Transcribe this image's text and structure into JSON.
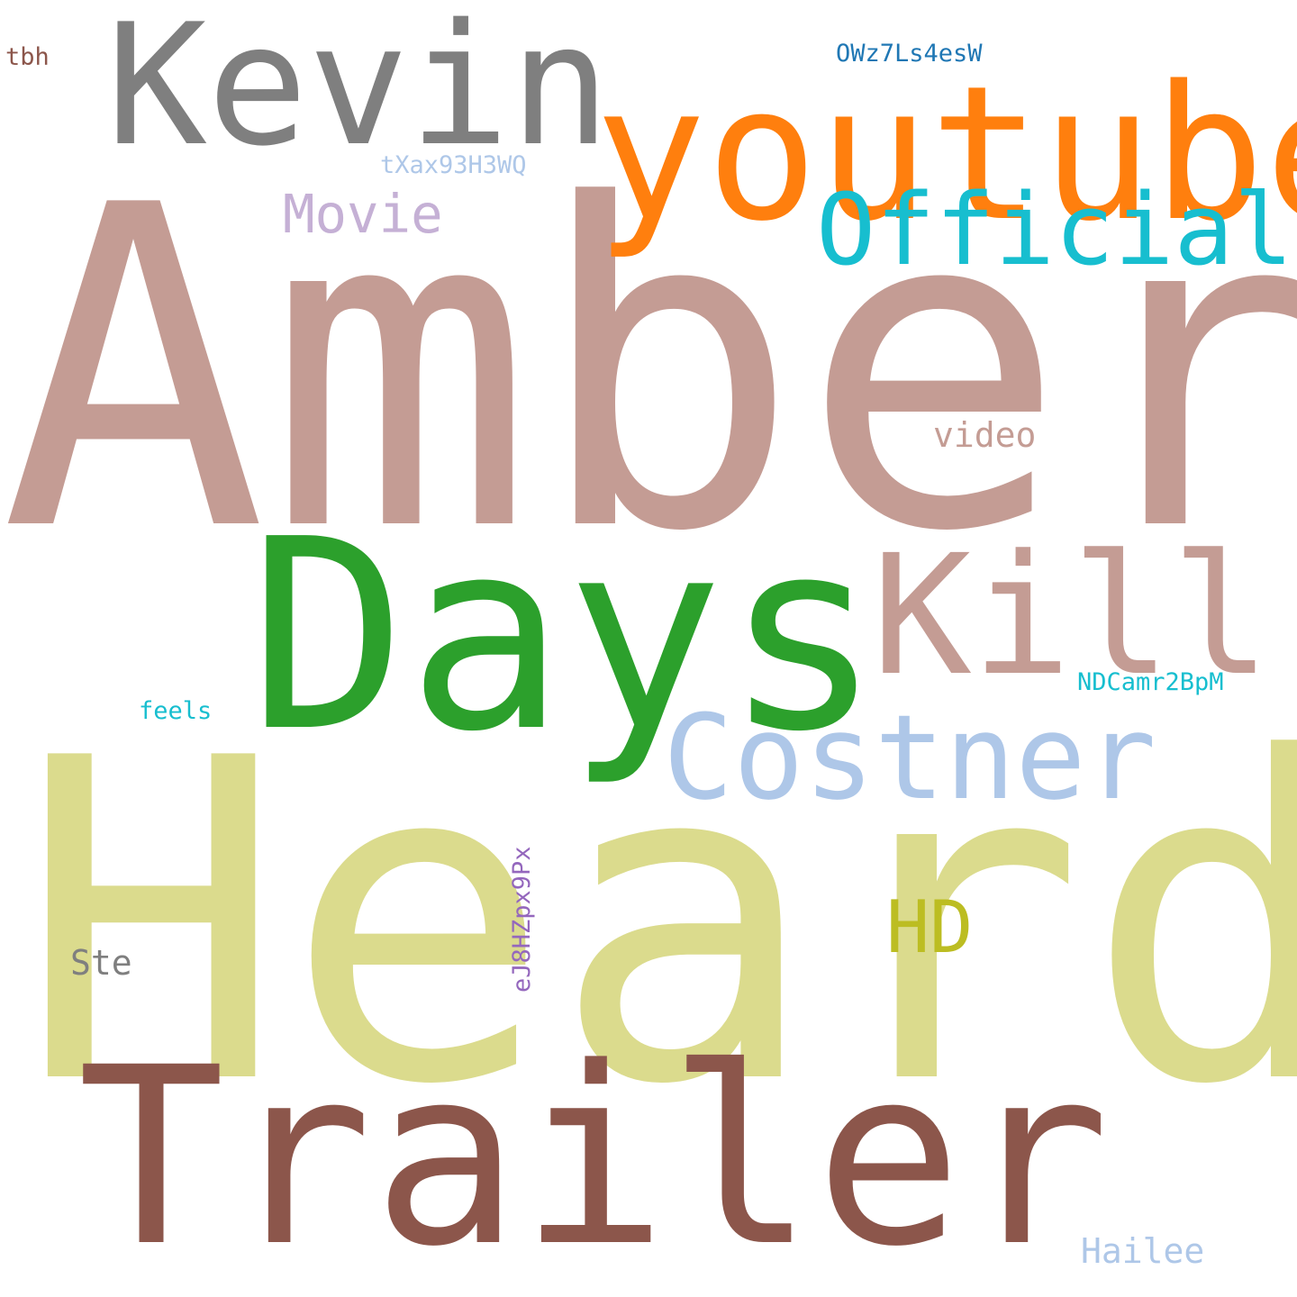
{
  "cloud": {
    "background": "#ffffff",
    "words": {
      "amber": {
        "text": "Amber",
        "color": "#c49c94"
      },
      "heard": {
        "text": "Heard",
        "color": "#dbdb8d"
      },
      "days": {
        "text": "Days",
        "color": "#2ca02c"
      },
      "trailer": {
        "text": "Trailer",
        "color": "#8c564b"
      },
      "kevin": {
        "text": "Kevin",
        "color": "#7f7f7f"
      },
      "youtube": {
        "text": "youtube",
        "color": "#ff7f0e"
      },
      "kill": {
        "text": "Kill",
        "color": "#c49c94"
      },
      "costner": {
        "text": "Costner",
        "color": "#aec7e8"
      },
      "official": {
        "text": "Official",
        "color": "#17becf"
      },
      "movie": {
        "text": "Movie",
        "color": "#c5b0d5"
      },
      "hd": {
        "text": "HD",
        "color": "#bcbd22"
      },
      "video": {
        "text": "video",
        "color": "#c49c94"
      },
      "ste": {
        "text": "Ste",
        "color": "#7f7f7f"
      },
      "hailee": {
        "text": "Hailee",
        "color": "#aec7e8"
      },
      "feels": {
        "text": "feels",
        "color": "#17becf"
      },
      "tbh": {
        "text": "tbh",
        "color": "#8c564b"
      },
      "owz": {
        "text": "OWz7Ls4esW",
        "color": "#1f77b4"
      },
      "txax": {
        "text": "tXax93H3WQ",
        "color": "#aec7e8"
      },
      "ndcamr": {
        "text": "NDCamr2BpM",
        "color": "#17becf"
      },
      "ej8hz": {
        "text": "eJ8HZpx9Px",
        "color": "#9467bd"
      }
    }
  }
}
